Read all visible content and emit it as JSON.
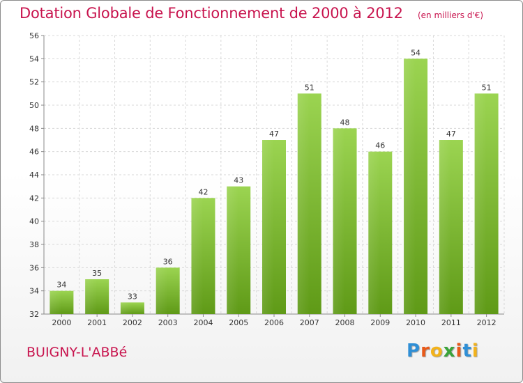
{
  "header": {
    "title": "Dotation Globale de Fonctionnement de 2000 à 2012",
    "subtitle": "(en milliers d'€)"
  },
  "footer": {
    "commune": "BUIGNY-L'ABBé",
    "logo_letters": [
      "P",
      "r",
      "o",
      "x",
      "i",
      "t",
      "i"
    ],
    "logo_colors": [
      "#2f8fd6",
      "#e85a1a",
      "#f2b21b",
      "#3aa33a",
      "#e85a1a",
      "#2f8fd6",
      "#f2b21b"
    ]
  },
  "colors": {
    "title": "#c8144e",
    "bar_top": "#9bd451",
    "bar_bottom": "#5f9a17",
    "grid": "#d8d8d8"
  },
  "chart_data": {
    "type": "bar",
    "categories": [
      "2000",
      "2001",
      "2002",
      "2003",
      "2004",
      "2005",
      "2006",
      "2007",
      "2008",
      "2009",
      "2010",
      "2011",
      "2012"
    ],
    "values": [
      34,
      35,
      33,
      36,
      42,
      43,
      47,
      51,
      48,
      46,
      54,
      47,
      51
    ],
    "ylim": [
      32,
      56
    ],
    "yticks": [
      32,
      34,
      36,
      38,
      40,
      42,
      44,
      46,
      48,
      50,
      52,
      54,
      56
    ],
    "grid": true,
    "data_labels": true
  }
}
